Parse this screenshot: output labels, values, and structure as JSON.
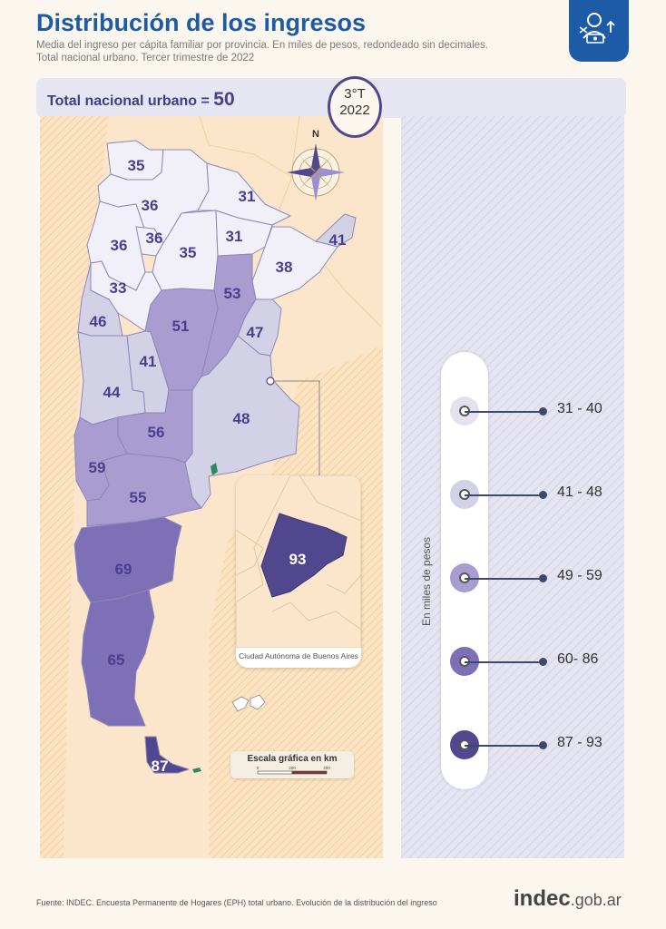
{
  "header": {
    "title": "Distribución de los ingresos",
    "subtitle_line1": "Media del ingreso per cápita familiar por provincia. En miles de pesos, redondeado sin decimales.",
    "subtitle_line2": "Total nacional urbano. Tercer trimestre de 2022"
  },
  "summary": {
    "total_label": "Total nacional urbano = ",
    "total_value": "50"
  },
  "period": {
    "quarter": "3°T",
    "year": "2022"
  },
  "compass": {
    "north_label": "N"
  },
  "provinces": [
    {
      "id": "jujuy",
      "value": "35",
      "color": "#f1f0f8"
    },
    {
      "id": "salta",
      "value": "36",
      "color": "#f1f0f8"
    },
    {
      "id": "formosa",
      "value": "31",
      "color": "#f1f0f8"
    },
    {
      "id": "catamarca",
      "value": "36",
      "color": "#f1f0f8"
    },
    {
      "id": "tucuman",
      "value": "36",
      "color": "#f1f0f8"
    },
    {
      "id": "santiago-del-estero",
      "value": "35",
      "color": "#f1f0f8"
    },
    {
      "id": "chaco",
      "value": "31",
      "color": "#f1f0f8"
    },
    {
      "id": "misiones",
      "value": "41",
      "color": "#d3d1e6"
    },
    {
      "id": "corrientes",
      "value": "38",
      "color": "#f1f0f8"
    },
    {
      "id": "la-rioja",
      "value": "33",
      "color": "#f1f0f8"
    },
    {
      "id": "santa-fe",
      "value": "53",
      "color": "#a89cd0"
    },
    {
      "id": "san-juan",
      "value": "46",
      "color": "#d3d1e6"
    },
    {
      "id": "cordoba",
      "value": "51",
      "color": "#a89cd0"
    },
    {
      "id": "entre-rios",
      "value": "47",
      "color": "#d3d1e6"
    },
    {
      "id": "san-luis",
      "value": "41",
      "color": "#d3d1e6"
    },
    {
      "id": "mendoza",
      "value": "44",
      "color": "#d3d1e6"
    },
    {
      "id": "la-pampa",
      "value": "56",
      "color": "#a89cd0"
    },
    {
      "id": "buenos-aires",
      "value": "48",
      "color": "#d3d1e6"
    },
    {
      "id": "neuquen",
      "value": "59",
      "color": "#a89cd0"
    },
    {
      "id": "rio-negro",
      "value": "55",
      "color": "#a89cd0"
    },
    {
      "id": "chubut",
      "value": "69",
      "color": "#7d70b7"
    },
    {
      "id": "santa-cruz",
      "value": "65",
      "color": "#7d70b7"
    },
    {
      "id": "tierra-del-fuego",
      "value": "87",
      "color": "#51478f"
    }
  ],
  "inset": {
    "label": "Ciudad Autónoma de Buenos Aires",
    "value": "93",
    "color": "#51478f"
  },
  "legend": {
    "unit_label": "En miles de pesos",
    "items": [
      {
        "range": "31 - 40",
        "color": "#e4e2ee"
      },
      {
        "range": "41 - 48",
        "color": "#d3d1e6"
      },
      {
        "range": "49 - 59",
        "color": "#a89cd0"
      },
      {
        "range": "60- 86",
        "color": "#7d70b7"
      },
      {
        "range": "87 - 93",
        "color": "#51478f"
      }
    ]
  },
  "scale": {
    "title": "Escala gráfica en km",
    "ticks": [
      "0",
      "200",
      "400"
    ]
  },
  "footer": {
    "source": "Fuente: INDEC. Encuesta Permanente de Hogares (EPH) total urbano. Evolución de la distribución del ingreso",
    "brand_main": "indec",
    "brand_suffix": ".gob.ar"
  }
}
